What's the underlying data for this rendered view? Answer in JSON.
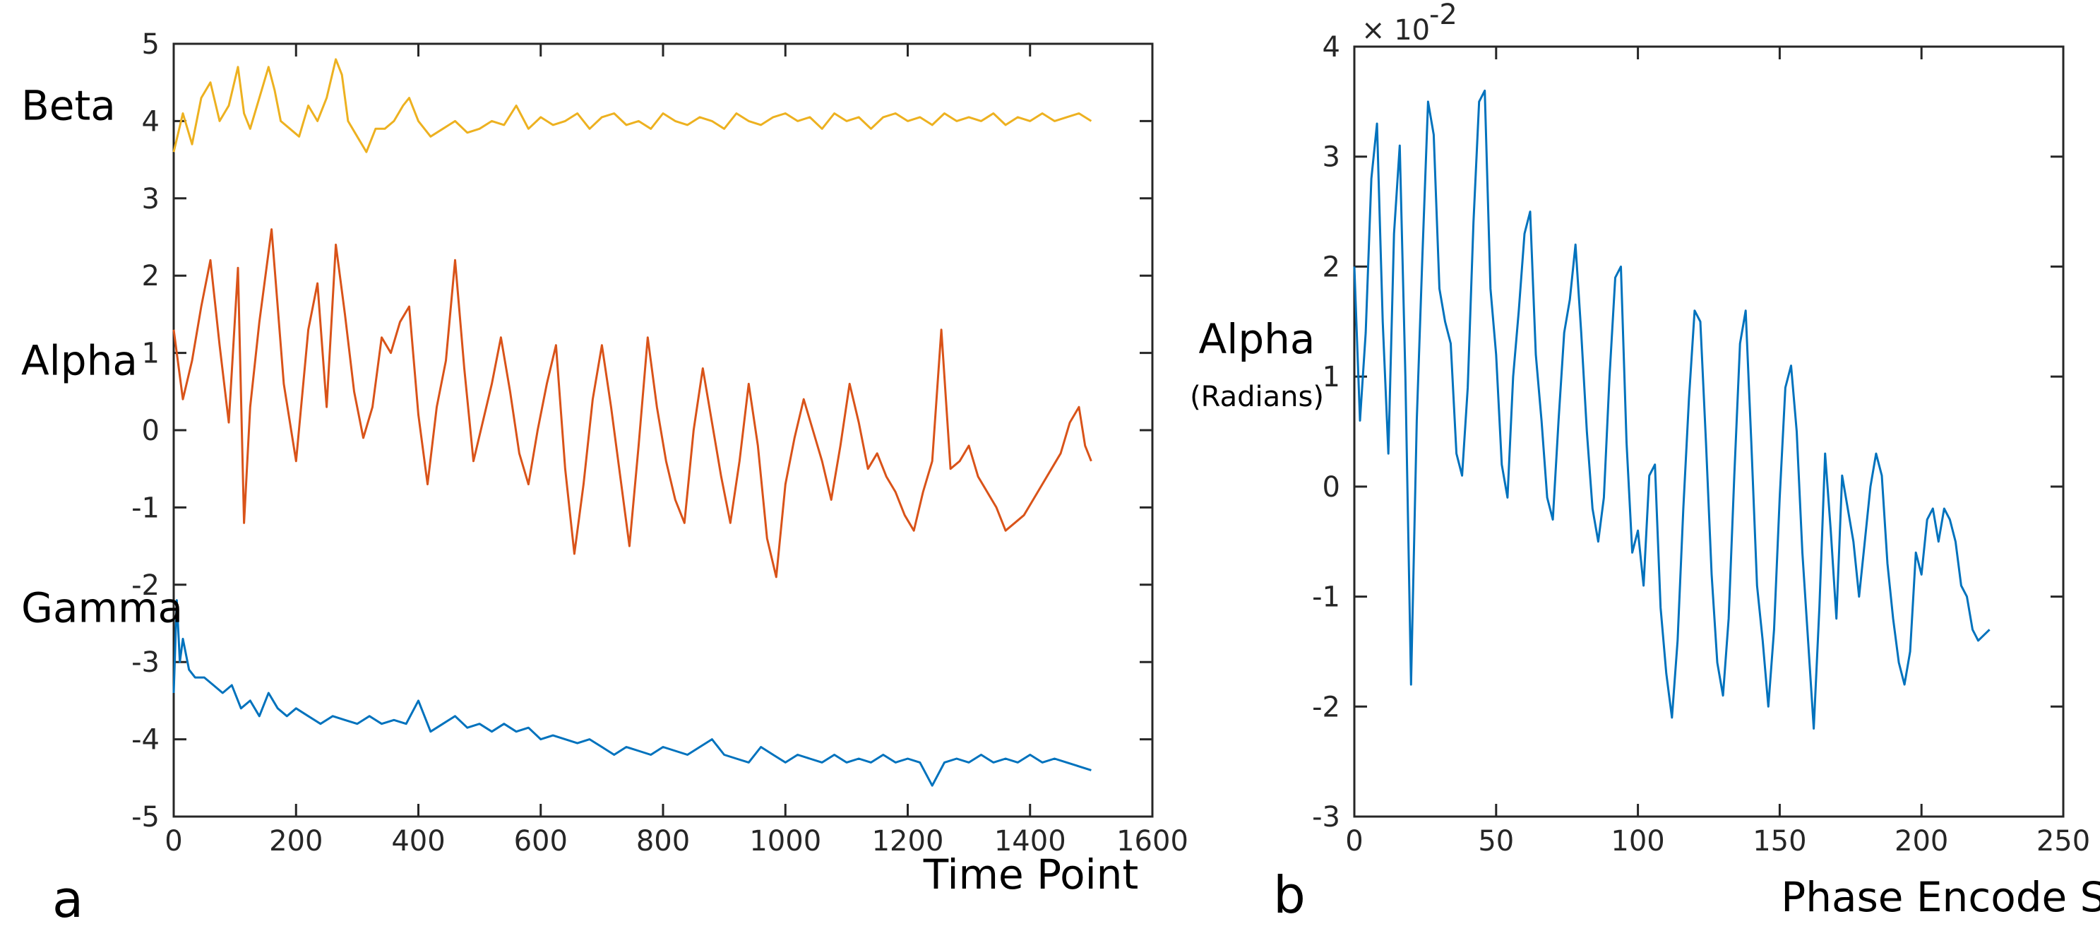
{
  "chart_data": [
    {
      "type": "line",
      "panel_label": "a",
      "xlabel": "Time Point",
      "ylabel": "",
      "xlim": [
        0,
        1600
      ],
      "ylim": [
        -5,
        5
      ],
      "xticks": [
        0,
        200,
        400,
        600,
        800,
        1000,
        1200,
        1400,
        1600
      ],
      "yticks": [
        -5,
        -4,
        -3,
        -2,
        -1,
        0,
        1,
        2,
        3,
        4,
        5
      ],
      "grid": false,
      "series": [
        {
          "name": "Beta",
          "color": "#EDB120",
          "x": [
            0,
            15,
            30,
            45,
            60,
            75,
            90,
            105,
            115,
            125,
            140,
            155,
            165,
            175,
            190,
            205,
            220,
            235,
            250,
            265,
            275,
            285,
            300,
            315,
            330,
            345,
            360,
            375,
            385,
            400,
            420,
            440,
            460,
            480,
            500,
            520,
            540,
            560,
            580,
            600,
            620,
            640,
            660,
            680,
            700,
            720,
            740,
            760,
            780,
            800,
            820,
            840,
            860,
            880,
            900,
            920,
            940,
            960,
            980,
            1000,
            1020,
            1040,
            1060,
            1080,
            1100,
            1120,
            1140,
            1160,
            1180,
            1200,
            1220,
            1240,
            1260,
            1280,
            1300,
            1320,
            1340,
            1360,
            1380,
            1400,
            1420,
            1440,
            1460,
            1480,
            1500
          ],
          "y": [
            3.6,
            4.1,
            3.7,
            4.3,
            4.5,
            4.0,
            4.2,
            4.7,
            4.1,
            3.9,
            4.3,
            4.7,
            4.4,
            4.0,
            3.9,
            3.8,
            4.2,
            4.0,
            4.3,
            4.8,
            4.6,
            4.0,
            3.8,
            3.6,
            3.9,
            3.9,
            4.0,
            4.2,
            4.3,
            4.0,
            3.8,
            3.9,
            4.0,
            3.85,
            3.9,
            4.0,
            3.95,
            4.2,
            3.9,
            4.05,
            3.95,
            4.0,
            4.1,
            3.9,
            4.05,
            4.1,
            3.95,
            4.0,
            3.9,
            4.1,
            4.0,
            3.95,
            4.05,
            4.0,
            3.9,
            4.1,
            4.0,
            3.95,
            4.05,
            4.1,
            4.0,
            4.05,
            3.9,
            4.1,
            4.0,
            4.05,
            3.9,
            4.05,
            4.1,
            4.0,
            4.05,
            3.95,
            4.1,
            4.0,
            4.05,
            4.0,
            4.1,
            3.95,
            4.05,
            4.0,
            4.1,
            4.0,
            4.05,
            4.1,
            4.0
          ]
        },
        {
          "name": "Alpha",
          "color": "#D95319",
          "x": [
            0,
            15,
            30,
            45,
            60,
            75,
            90,
            105,
            115,
            125,
            140,
            160,
            180,
            200,
            220,
            235,
            250,
            265,
            280,
            295,
            310,
            325,
            340,
            355,
            370,
            385,
            400,
            415,
            430,
            445,
            460,
            475,
            490,
            505,
            520,
            535,
            550,
            565,
            580,
            595,
            610,
            625,
            640,
            655,
            670,
            685,
            700,
            715,
            730,
            745,
            760,
            775,
            790,
            805,
            820,
            835,
            850,
            865,
            880,
            895,
            910,
            925,
            940,
            955,
            970,
            985,
            1000,
            1015,
            1030,
            1045,
            1060,
            1075,
            1090,
            1105,
            1120,
            1135,
            1150,
            1165,
            1180,
            1195,
            1210,
            1225,
            1240,
            1255,
            1270,
            1285,
            1300,
            1315,
            1330,
            1345,
            1360,
            1375,
            1390,
            1405,
            1420,
            1435,
            1450,
            1465,
            1480,
            1490,
            1500
          ],
          "y": [
            1.3,
            0.4,
            0.9,
            1.6,
            2.2,
            1.1,
            0.1,
            2.1,
            -1.2,
            0.3,
            1.4,
            2.6,
            0.6,
            -0.4,
            1.3,
            1.9,
            0.3,
            2.4,
            1.5,
            0.5,
            -0.1,
            0.3,
            1.2,
            1.0,
            1.4,
            1.6,
            0.2,
            -0.7,
            0.3,
            0.9,
            2.2,
            0.8,
            -0.4,
            0.1,
            0.6,
            1.2,
            0.5,
            -0.3,
            -0.7,
            0.0,
            0.6,
            1.1,
            -0.5,
            -1.6,
            -0.7,
            0.4,
            1.1,
            0.3,
            -0.6,
            -1.5,
            -0.2,
            1.2,
            0.3,
            -0.4,
            -0.9,
            -1.2,
            0.0,
            0.8,
            0.1,
            -0.6,
            -1.2,
            -0.4,
            0.6,
            -0.2,
            -1.4,
            -1.9,
            -0.7,
            -0.1,
            0.4,
            0.0,
            -0.4,
            -0.9,
            -0.2,
            0.6,
            0.1,
            -0.5,
            -0.3,
            -0.6,
            -0.8,
            -1.1,
            -1.3,
            -0.8,
            -0.4,
            1.3,
            -0.5,
            -0.4,
            -0.2,
            -0.6,
            -0.8,
            -1.0,
            -1.3,
            -1.2,
            -1.1,
            -0.9,
            -0.7,
            -0.5,
            -0.3,
            0.1,
            0.3,
            -0.2,
            -0.4
          ]
        },
        {
          "name": "Gamma",
          "color": "#0072BD",
          "x": [
            0,
            5,
            10,
            15,
            25,
            35,
            50,
            65,
            80,
            95,
            110,
            125,
            140,
            155,
            170,
            185,
            200,
            220,
            240,
            260,
            280,
            300,
            320,
            340,
            360,
            380,
            400,
            420,
            440,
            460,
            480,
            500,
            520,
            540,
            560,
            580,
            600,
            620,
            640,
            660,
            680,
            700,
            720,
            740,
            760,
            780,
            800,
            820,
            840,
            860,
            880,
            900,
            920,
            940,
            960,
            980,
            1000,
            1020,
            1040,
            1060,
            1080,
            1100,
            1120,
            1140,
            1160,
            1180,
            1200,
            1220,
            1240,
            1260,
            1280,
            1300,
            1320,
            1340,
            1360,
            1380,
            1400,
            1420,
            1440,
            1460,
            1480,
            1500
          ],
          "y": [
            -3.4,
            -2.2,
            -3.0,
            -2.7,
            -3.1,
            -3.2,
            -3.2,
            -3.3,
            -3.4,
            -3.3,
            -3.6,
            -3.5,
            -3.7,
            -3.4,
            -3.6,
            -3.7,
            -3.6,
            -3.7,
            -3.8,
            -3.7,
            -3.75,
            -3.8,
            -3.7,
            -3.8,
            -3.75,
            -3.8,
            -3.5,
            -3.9,
            -3.8,
            -3.7,
            -3.85,
            -3.8,
            -3.9,
            -3.8,
            -3.9,
            -3.85,
            -4.0,
            -3.95,
            -4.0,
            -4.05,
            -4.0,
            -4.1,
            -4.2,
            -4.1,
            -4.15,
            -4.2,
            -4.1,
            -4.15,
            -4.2,
            -4.1,
            -4.0,
            -4.2,
            -4.25,
            -4.3,
            -4.1,
            -4.2,
            -4.3,
            -4.2,
            -4.25,
            -4.3,
            -4.2,
            -4.3,
            -4.25,
            -4.3,
            -4.2,
            -4.3,
            -4.25,
            -4.3,
            -4.6,
            -4.3,
            -4.25,
            -4.3,
            -4.2,
            -4.3,
            -4.25,
            -4.3,
            -4.2,
            -4.3,
            -4.25,
            -4.3,
            -4.35,
            -4.4
          ]
        }
      ]
    },
    {
      "type": "line",
      "panel_label": "b",
      "title": "",
      "ylabel": "Alpha",
      "ylabel_units": "(Radians)",
      "xlabel": "Phase Encode Step",
      "y_exponent_base": "× 10",
      "y_exponent_power": "-2",
      "xlim": [
        0,
        250
      ],
      "ylim": [
        -3,
        4
      ],
      "xticks": [
        0,
        50,
        100,
        150,
        200,
        250
      ],
      "yticks": [
        -3,
        -2,
        -1,
        0,
        1,
        2,
        3,
        4
      ],
      "grid": false,
      "series": [
        {
          "name": "Alpha",
          "color": "#0072BD",
          "x": [
            0,
            2,
            4,
            6,
            8,
            10,
            12,
            14,
            16,
            18,
            20,
            22,
            24,
            26,
            28,
            30,
            32,
            34,
            36,
            38,
            40,
            42,
            44,
            46,
            48,
            50,
            52,
            54,
            56,
            58,
            60,
            62,
            64,
            66,
            68,
            70,
            72,
            74,
            76,
            78,
            80,
            82,
            84,
            86,
            88,
            90,
            92,
            94,
            96,
            98,
            100,
            102,
            104,
            106,
            108,
            110,
            112,
            114,
            116,
            118,
            120,
            122,
            124,
            126,
            128,
            130,
            132,
            134,
            136,
            138,
            140,
            142,
            144,
            146,
            148,
            150,
            152,
            154,
            156,
            158,
            160,
            162,
            164,
            166,
            168,
            170,
            172,
            174,
            176,
            178,
            180,
            182,
            184,
            186,
            188,
            190,
            192,
            194,
            196,
            198,
            200,
            202,
            204,
            206,
            208,
            210,
            212,
            214,
            216,
            218,
            220,
            222,
            224
          ],
          "y": [
            2.0,
            0.6,
            1.4,
            2.8,
            3.3,
            1.5,
            0.3,
            2.3,
            3.1,
            1.0,
            -1.8,
            0.6,
            2.1,
            3.5,
            3.2,
            1.8,
            1.5,
            1.3,
            0.3,
            0.1,
            0.9,
            2.4,
            3.5,
            3.6,
            1.8,
            1.2,
            0.2,
            -0.1,
            1.0,
            1.6,
            2.3,
            2.5,
            1.2,
            0.6,
            -0.1,
            -0.3,
            0.6,
            1.4,
            1.7,
            2.2,
            1.4,
            0.5,
            -0.2,
            -0.5,
            -0.1,
            1.0,
            1.9,
            2.0,
            0.4,
            -0.6,
            -0.4,
            -0.9,
            0.1,
            0.2,
            -1.1,
            -1.7,
            -2.1,
            -1.4,
            -0.2,
            0.8,
            1.6,
            1.5,
            0.4,
            -0.8,
            -1.6,
            -1.9,
            -1.2,
            0.1,
            1.3,
            1.6,
            0.4,
            -0.9,
            -1.4,
            -2.0,
            -1.3,
            -0.1,
            0.9,
            1.1,
            0.5,
            -0.6,
            -1.4,
            -2.2,
            -1.1,
            0.3,
            -0.4,
            -1.2,
            0.1,
            -0.2,
            -0.5,
            -1.0,
            -0.5,
            0.0,
            0.3,
            0.1,
            -0.7,
            -1.2,
            -1.6,
            -1.8,
            -1.5,
            -0.6,
            -0.8,
            -0.3,
            -0.2,
            -0.5,
            -0.2,
            -0.3,
            -0.5,
            -0.9,
            -1.0,
            -1.3,
            -1.4,
            -1.35,
            -1.3
          ]
        }
      ]
    }
  ]
}
